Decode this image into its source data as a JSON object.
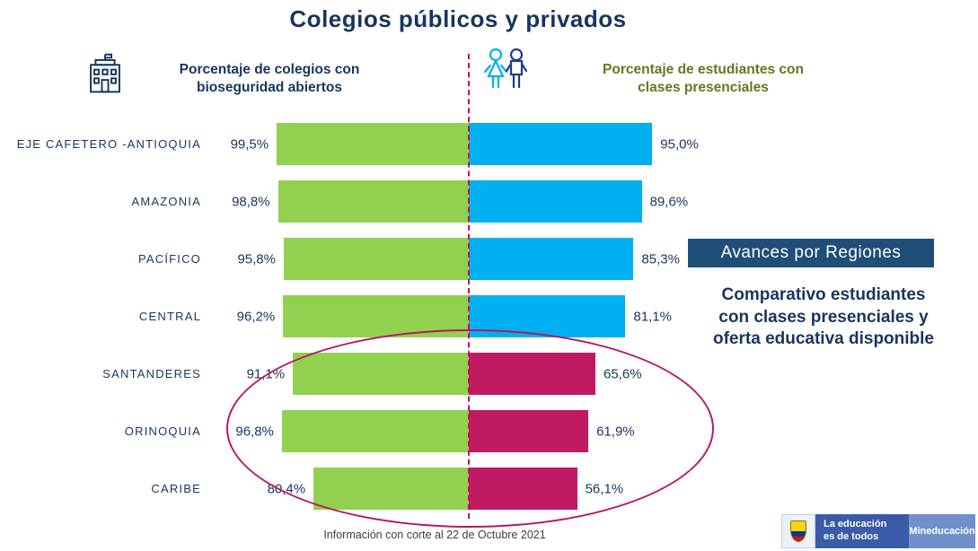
{
  "title": "Colegios públicos y privados",
  "headers": {
    "left": "Porcentaje de colegios con bioseguridad abiertos",
    "right": "Porcentaje de estudiantes con clases presenciales"
  },
  "annotations": {
    "region_badge": "Avances por Regiones",
    "note_lines": [
      "Comparativo estudiantes",
      "con clases presenciales y",
      "oferta educativa disponible"
    ],
    "footnote": "Información con corte al  22  de Octubre 2021"
  },
  "logo": {
    "slogan_line1": "La educación",
    "slogan_line2": "es de todos",
    "ministry": "Mineducación"
  },
  "colors": {
    "navy": "#17365D",
    "olive": "#5F7A1F",
    "green_bar": "#92D050",
    "blue_bar": "#00B0F0",
    "magenta_bar": "#C01A62",
    "center_line": "#CC0062",
    "ellipse": "#B51A63",
    "badge_bg": "#1F4E79"
  },
  "chart_data": {
    "type": "bar",
    "orientation": "diverging-horizontal",
    "title": "Colegios públicos y privados",
    "categories": [
      "EJE CAFETERO -ANTIOQUIA",
      "AMAZONIA",
      "PACÍFICO",
      "CENTRAL",
      "SANTANDERES",
      "ORINOQUIA",
      "CARIBE"
    ],
    "series": [
      {
        "name": "Porcentaje de colegios con bioseguridad abiertos",
        "side": "left",
        "values": [
          99.5,
          98.8,
          95.8,
          96.2,
          91.1,
          96.8,
          80.4
        ],
        "labels": [
          "99,5%",
          "98,8%",
          "95,8%",
          "96,2%",
          "91,1%",
          "96,8%",
          "80,4%"
        ],
        "color": "#92D050"
      },
      {
        "name": "Porcentaje de estudiantes con clases presenciales",
        "side": "right",
        "values": [
          95.0,
          89.6,
          85.3,
          81.1,
          65.6,
          61.9,
          56.1
        ],
        "labels": [
          "95,0%",
          "89,6%",
          "85,3%",
          "81,1%",
          "65,6%",
          "61,9%",
          "56,1%"
        ],
        "colors": [
          "#00B0F0",
          "#00B0F0",
          "#00B0F0",
          "#00B0F0",
          "#C01A62",
          "#C01A62",
          "#C01A62"
        ]
      }
    ],
    "highlighted_rows": [
      "SANTANDERES",
      "ORINOQUIA",
      "CARIBE"
    ],
    "xlim": [
      0,
      100
    ],
    "value_format": "percent-comma-decimal"
  }
}
